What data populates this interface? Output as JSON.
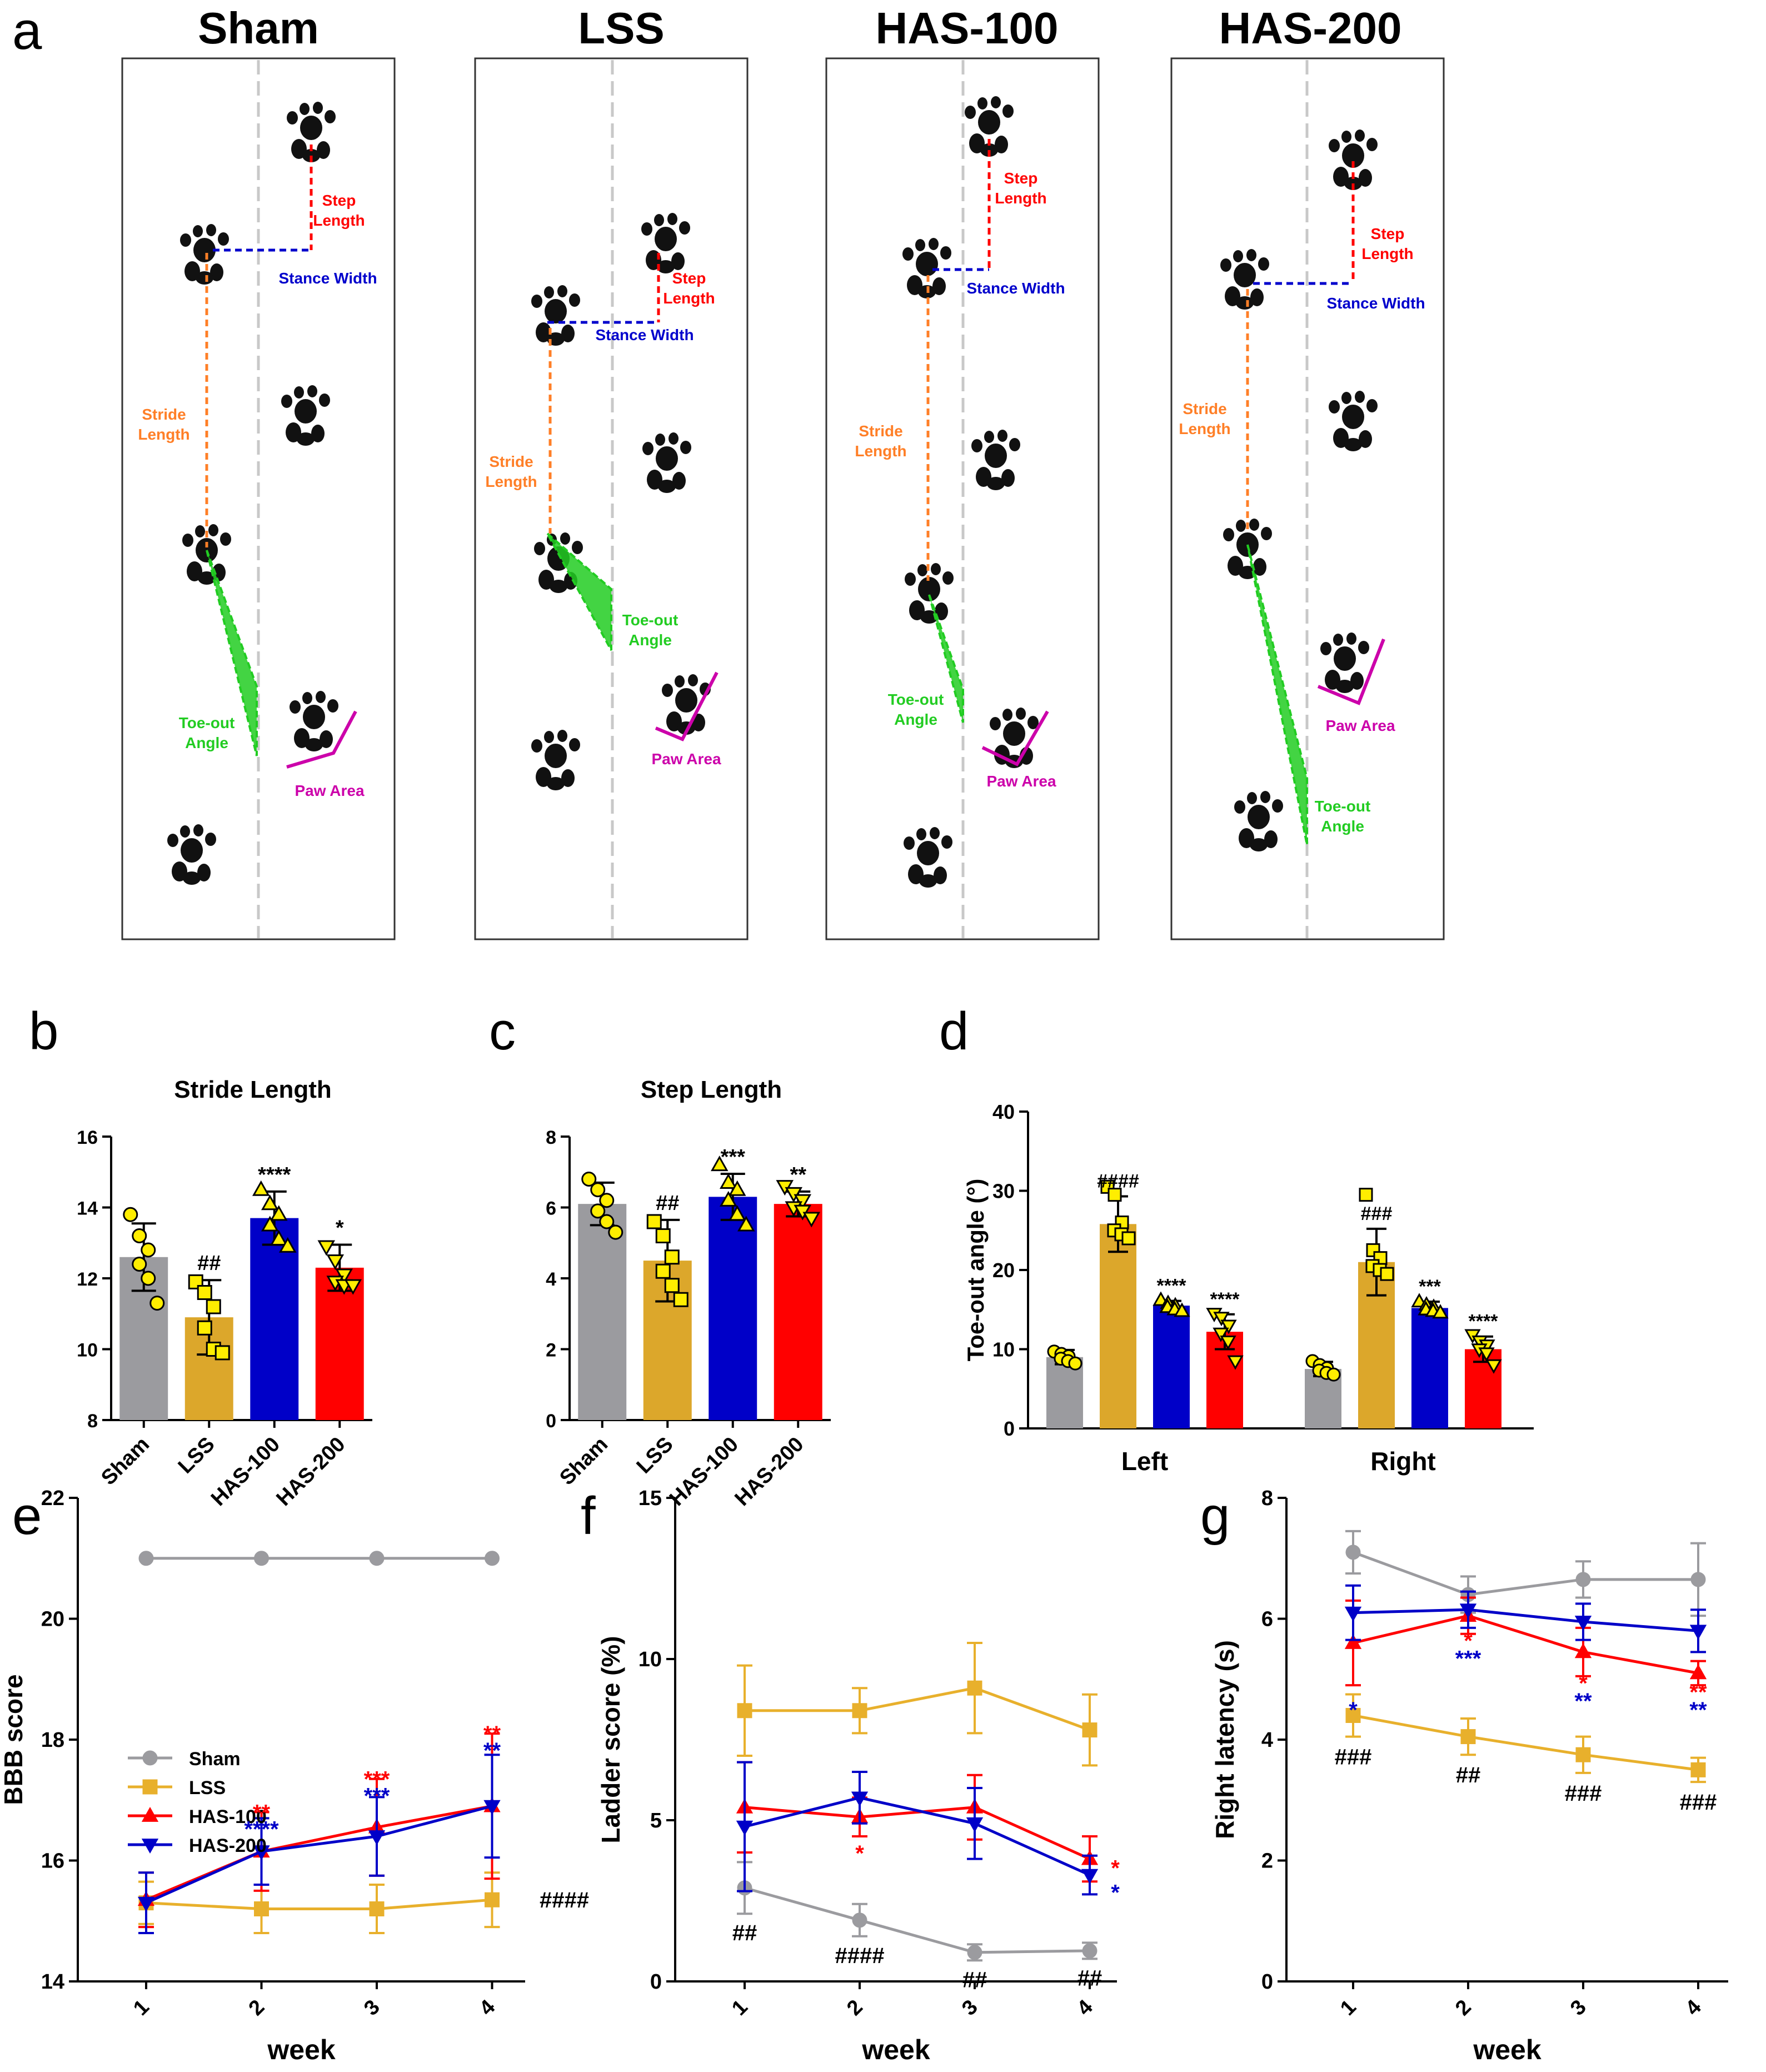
{
  "panel_letters": {
    "a": "a",
    "b": "b",
    "c": "c",
    "d": "d",
    "e": "e",
    "f": "f",
    "g": "g"
  },
  "colors": {
    "sham": "#9b9b9f",
    "lss": "#dca72b",
    "lss_line": "#e8b02c",
    "has100": "#0000c8",
    "has200": "#ff0000",
    "point_fill": "#ffee00",
    "annot_stride": "#ff7f27",
    "annot_step": "#ff0000",
    "annot_stance": "#0000cc",
    "annot_toeout": "#22cc22",
    "annot_paw": "#cc00aa"
  },
  "footprints": {
    "panels": [
      {
        "title": "Sham",
        "labels": {
          "step": [
            "Step",
            "Length"
          ],
          "stance": "Stance Width",
          "stride": [
            "Stride",
            "Length"
          ],
          "toeout": [
            "Toe-out",
            "Angle"
          ],
          "paw": "Paw Area"
        }
      },
      {
        "title": "LSS",
        "labels": {
          "step": [
            "Step",
            "Length"
          ],
          "stance": "Stance Width",
          "stride": [
            "Stride",
            "Length"
          ],
          "toeout": [
            "Toe-out",
            "Angle"
          ],
          "paw": "Paw Area"
        }
      },
      {
        "title": "HAS-100",
        "labels": {
          "step": [
            "Step",
            "Length"
          ],
          "stance": "Stance Width",
          "stride": [
            "Stride",
            "Length"
          ],
          "toeout": [
            "Toe-out",
            "Angle"
          ],
          "paw": "Paw Area"
        }
      },
      {
        "title": "HAS-200",
        "labels": {
          "step": [
            "Step",
            "Length"
          ],
          "stance": "Stance Width",
          "stride": [
            "Stride",
            "Length"
          ],
          "toeout": [
            "Toe-out",
            "Angle"
          ],
          "paw": "Paw Area"
        }
      }
    ]
  },
  "chart_data": [
    {
      "id": "b",
      "type": "bar",
      "title": "Stride Length",
      "xlabel": "",
      "ylabel": "",
      "categories": [
        "Sham",
        "LSS",
        "HAS-100",
        "HAS-200"
      ],
      "values": [
        12.6,
        10.9,
        13.7,
        12.3
      ],
      "errors": [
        0.95,
        1.05,
        0.75,
        0.65
      ],
      "points": [
        [
          13.8,
          13.2,
          12.8,
          12.4,
          12.0,
          11.3
        ],
        [
          11.9,
          11.6,
          11.2,
          10.6,
          10.0,
          9.9
        ],
        [
          14.5,
          14.1,
          13.8,
          13.5,
          13.1,
          12.9
        ],
        [
          12.9,
          12.5,
          12.1,
          11.9,
          11.8,
          11.8
        ]
      ],
      "markers": [
        "circle",
        "square",
        "triangle-up",
        "triangle-down"
      ],
      "annotations": [
        "",
        "##",
        "****",
        "*"
      ],
      "ylim": [
        8,
        16
      ],
      "yticks": [
        8,
        10,
        12,
        14,
        16
      ]
    },
    {
      "id": "c",
      "type": "bar",
      "title": "Step Length",
      "xlabel": "",
      "ylabel": "",
      "categories": [
        "Sham",
        "LSS",
        "HAS-100",
        "HAS-200"
      ],
      "values": [
        6.1,
        4.5,
        6.3,
        6.1
      ],
      "errors": [
        0.6,
        1.15,
        0.65,
        0.35
      ],
      "points": [
        [
          6.8,
          6.5,
          6.2,
          5.9,
          5.6,
          5.3
        ],
        [
          5.6,
          5.2,
          4.6,
          4.2,
          3.8,
          3.4
        ],
        [
          7.2,
          6.7,
          6.5,
          6.2,
          5.8,
          5.5
        ],
        [
          6.6,
          6.4,
          6.2,
          6.0,
          5.9,
          5.7
        ]
      ],
      "markers": [
        "circle",
        "square",
        "triangle-up",
        "triangle-down"
      ],
      "annotations": [
        "",
        "##",
        "***",
        "**"
      ],
      "ylim": [
        0,
        8
      ],
      "yticks": [
        0,
        2,
        4,
        6,
        8
      ]
    },
    {
      "id": "d",
      "type": "bar",
      "title": "",
      "xlabel": "",
      "ylabel": "Toe-out angle (°)",
      "categories": [
        "Left",
        "Right"
      ],
      "series": [
        {
          "name": "Sham",
          "values": [
            9.0,
            7.5
          ],
          "errors": [
            0.9,
            0.9
          ],
          "points": [
            [
              9.7,
              9.4,
              9.1,
              8.8,
              8.5,
              8.2
            ],
            [
              8.5,
              8.0,
              7.6,
              7.3,
              7.0,
              6.8
            ]
          ],
          "marker": "circle"
        },
        {
          "name": "LSS",
          "values": [
            25.8,
            21.0
          ],
          "errors": [
            3.5,
            4.2
          ],
          "points": [
            [
              30.5,
              29.5,
              26.0,
              25.0,
              24.5,
              24.0
            ],
            [
              29.5,
              22.5,
              21.5,
              20.5,
              20.0,
              19.5
            ]
          ],
          "marker": "square"
        },
        {
          "name": "HAS-100",
          "values": [
            15.5,
            15.2
          ],
          "errors": [
            0.6,
            0.8
          ],
          "points": [
            [
              16.2,
              15.8,
              15.5,
              15.3,
              15.0,
              14.8
            ],
            [
              16.0,
              15.6,
              15.3,
              15.0,
              14.8,
              14.6
            ]
          ],
          "marker": "triangle-up"
        },
        {
          "name": "HAS-200",
          "values": [
            12.2,
            10.0
          ],
          "errors": [
            2.2,
            1.6
          ],
          "points": [
            [
              14.5,
              14.0,
              13.0,
              12.0,
              11.0,
              8.5
            ],
            [
              11.8,
              11.0,
              10.5,
              10.0,
              9.5,
              8.0
            ]
          ],
          "marker": "triangle-down"
        }
      ],
      "annotations": [
        [
          "",
          "####",
          "****",
          "****"
        ],
        [
          "",
          "###",
          "***",
          "****"
        ]
      ],
      "ylim": [
        0,
        40
      ],
      "yticks": [
        0,
        10,
        20,
        30,
        40
      ]
    },
    {
      "id": "e",
      "type": "line",
      "title": "",
      "xlabel": "week",
      "ylabel": "BBB score",
      "x": [
        1,
        2,
        3,
        4
      ],
      "series": [
        {
          "name": "Sham",
          "values": [
            21.0,
            21.0,
            21.0,
            21.0
          ],
          "errors": [
            0,
            0,
            0,
            0
          ],
          "marker": "circle"
        },
        {
          "name": "LSS",
          "values": [
            15.3,
            15.2,
            15.2,
            15.35
          ],
          "errors": [
            0.35,
            0.4,
            0.4,
            0.45
          ],
          "marker": "square"
        },
        {
          "name": "HAS-100",
          "values": [
            15.35,
            16.15,
            16.55,
            16.9
          ],
          "errors": [
            0.45,
            0.65,
            0.8,
            1.2
          ],
          "marker": "triangle-up"
        },
        {
          "name": "HAS-200",
          "values": [
            15.3,
            16.15,
            16.4,
            16.9
          ],
          "errors": [
            0.5,
            0.55,
            0.65,
            0.85
          ],
          "marker": "triangle-down"
        }
      ],
      "legend": [
        "Sham",
        "LSS",
        "HAS-100",
        "HAS-200"
      ],
      "annotations": [
        {
          "week": 2,
          "text": "**",
          "color": "red"
        },
        {
          "week": 2,
          "text": "****",
          "color": "blue"
        },
        {
          "week": 3,
          "text": "***",
          "color": "red"
        },
        {
          "week": 3,
          "text": "***",
          "color": "blue"
        },
        {
          "week": 4,
          "text": "**",
          "color": "red"
        },
        {
          "week": 4,
          "text": "**",
          "color": "blue"
        },
        {
          "week": 4,
          "text": "####",
          "color": "black"
        }
      ],
      "ylim": [
        14,
        22
      ],
      "yticks": [
        14,
        16,
        18,
        20,
        22
      ]
    },
    {
      "id": "f",
      "type": "line",
      "title": "",
      "xlabel": "week",
      "ylabel": "Ladder score (%)",
      "x": [
        1,
        2,
        3,
        4
      ],
      "series": [
        {
          "name": "Sham",
          "values": [
            2.9,
            1.9,
            0.9,
            0.95
          ],
          "errors": [
            0.8,
            0.5,
            0.25,
            0.25
          ],
          "marker": "circle"
        },
        {
          "name": "LSS",
          "values": [
            8.4,
            8.4,
            9.1,
            7.8
          ],
          "errors": [
            1.4,
            0.7,
            1.4,
            1.1
          ],
          "marker": "square"
        },
        {
          "name": "HAS-100",
          "values": [
            5.4,
            5.1,
            5.4,
            3.8
          ],
          "errors": [
            1.4,
            0.6,
            1.0,
            0.7
          ],
          "marker": "triangle-up"
        },
        {
          "name": "HAS-200",
          "values": [
            4.8,
            5.7,
            4.9,
            3.3
          ],
          "errors": [
            2.0,
            0.8,
            1.1,
            0.6
          ],
          "marker": "triangle-down"
        }
      ],
      "annotations": [
        {
          "week": 1,
          "text": "##",
          "color": "black"
        },
        {
          "week": 2,
          "text": "####",
          "color": "black"
        },
        {
          "week": 2,
          "text": "*",
          "color": "red"
        },
        {
          "week": 3,
          "text": "##",
          "color": "black"
        },
        {
          "week": 4,
          "text": "##",
          "color": "black"
        },
        {
          "week": 4,
          "text": "*",
          "color": "red"
        },
        {
          "week": 4,
          "text": "*",
          "color": "blue"
        }
      ],
      "ylim": [
        0,
        15
      ],
      "yticks": [
        0,
        5,
        10,
        15
      ]
    },
    {
      "id": "g",
      "type": "line",
      "title": "",
      "xlabel": "week",
      "ylabel": "Right latency (s)",
      "x": [
        1,
        2,
        3,
        4
      ],
      "series": [
        {
          "name": "Sham",
          "values": [
            7.1,
            6.4,
            6.65,
            6.65
          ],
          "errors": [
            0.35,
            0.3,
            0.3,
            0.6
          ],
          "marker": "circle"
        },
        {
          "name": "LSS",
          "values": [
            4.4,
            4.05,
            3.75,
            3.5
          ],
          "errors": [
            0.35,
            0.3,
            0.3,
            0.2
          ],
          "marker": "square"
        },
        {
          "name": "HAS-100",
          "values": [
            5.6,
            6.05,
            5.45,
            5.1
          ],
          "errors": [
            0.7,
            0.3,
            0.4,
            0.2
          ],
          "marker": "triangle-up"
        },
        {
          "name": "HAS-200",
          "values": [
            6.1,
            6.15,
            5.95,
            5.8
          ],
          "errors": [
            0.45,
            0.3,
            0.3,
            0.35
          ],
          "marker": "triangle-down"
        }
      ],
      "annotations": [
        {
          "week": 1,
          "text": "*",
          "color": "blue"
        },
        {
          "week": 1,
          "text": "###",
          "color": "black"
        },
        {
          "week": 2,
          "text": "*",
          "color": "red"
        },
        {
          "week": 2,
          "text": "***",
          "color": "blue"
        },
        {
          "week": 2,
          "text": "##",
          "color": "black"
        },
        {
          "week": 3,
          "text": "*",
          "color": "red"
        },
        {
          "week": 3,
          "text": "**",
          "color": "blue"
        },
        {
          "week": 3,
          "text": "###",
          "color": "black"
        },
        {
          "week": 4,
          "text": "**",
          "color": "red"
        },
        {
          "week": 4,
          "text": "**",
          "color": "blue"
        },
        {
          "week": 4,
          "text": "###",
          "color": "black"
        }
      ],
      "ylim": [
        0,
        8
      ],
      "yticks": [
        0,
        2,
        4,
        6,
        8
      ]
    }
  ]
}
